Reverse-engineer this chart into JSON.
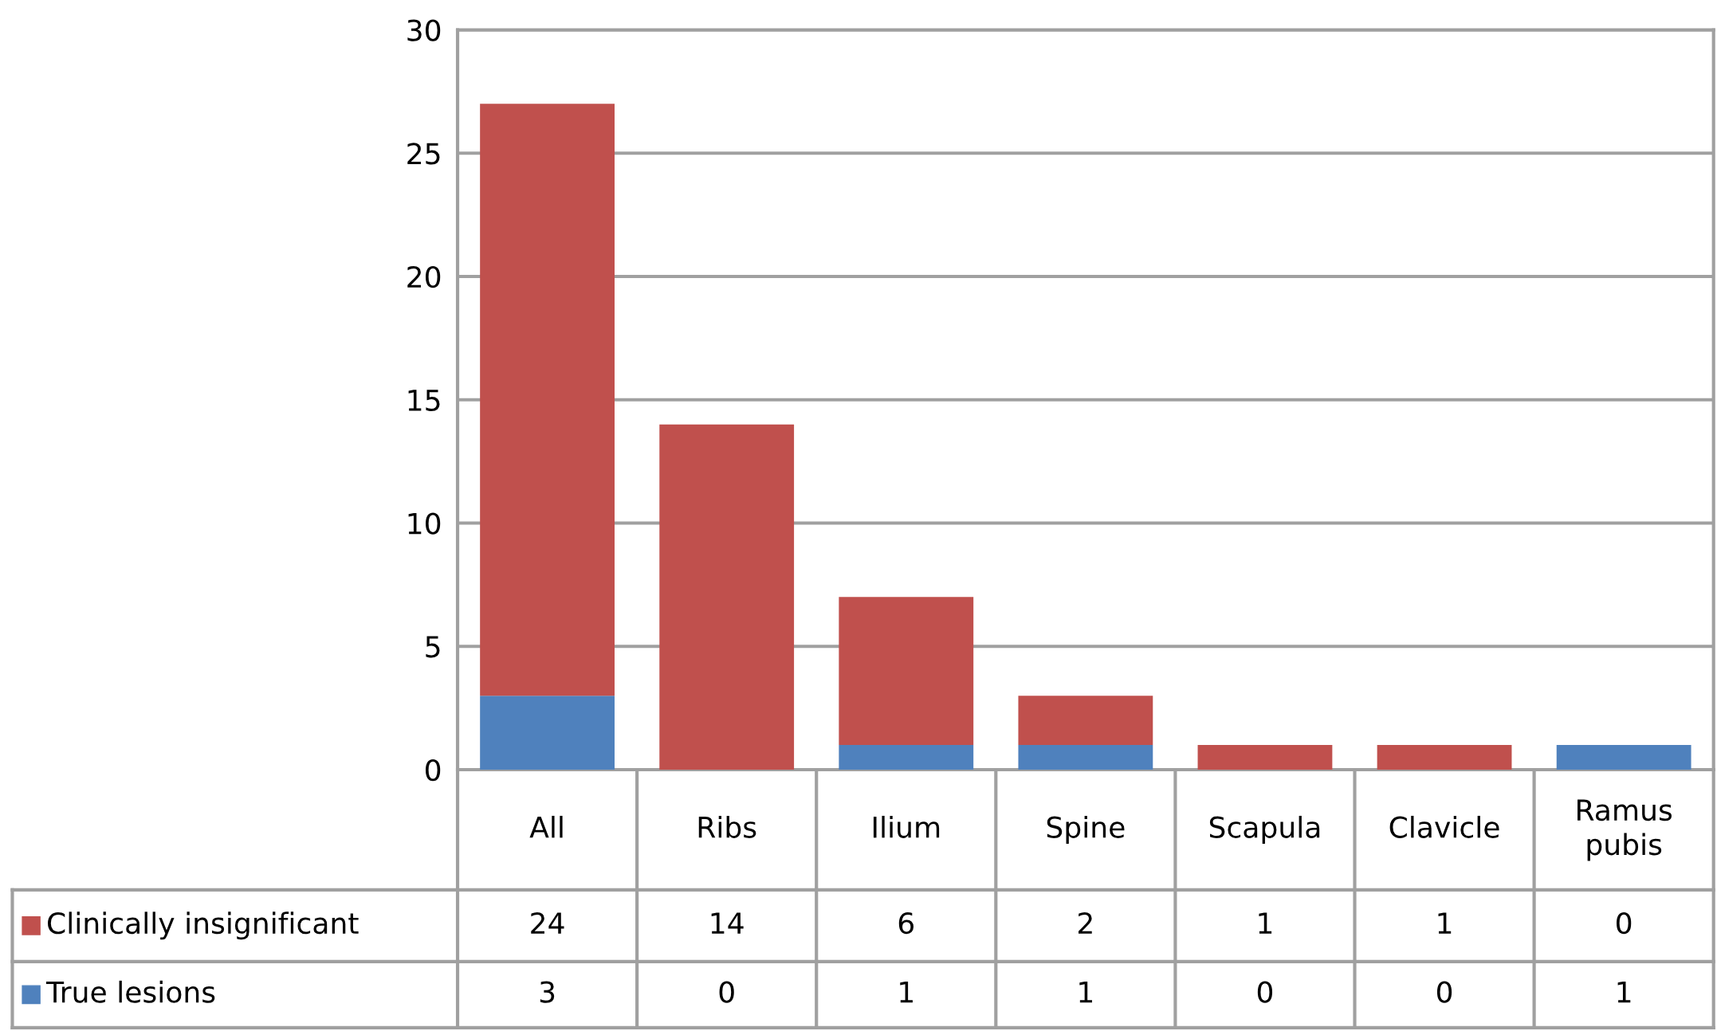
{
  "chart_data": {
    "type": "bar",
    "stacked": true,
    "categories": [
      "All",
      "Ribs",
      "Ilium",
      "Spine",
      "Scapula",
      "Clavicle",
      "Ramus\npubis"
    ],
    "series": [
      {
        "name": "True lesions",
        "color": "#4f81bd",
        "values": [
          3,
          0,
          1,
          1,
          0,
          0,
          1
        ]
      },
      {
        "name": "Clinically insignificant",
        "color": "#c0504d",
        "values": [
          24,
          14,
          6,
          2,
          1,
          1,
          0
        ]
      }
    ],
    "ylim": [
      0,
      30
    ],
    "yticks": [
      0,
      5,
      10,
      15,
      20,
      25,
      30
    ],
    "grid": "y",
    "legend": "bottom",
    "data_labels": true
  }
}
